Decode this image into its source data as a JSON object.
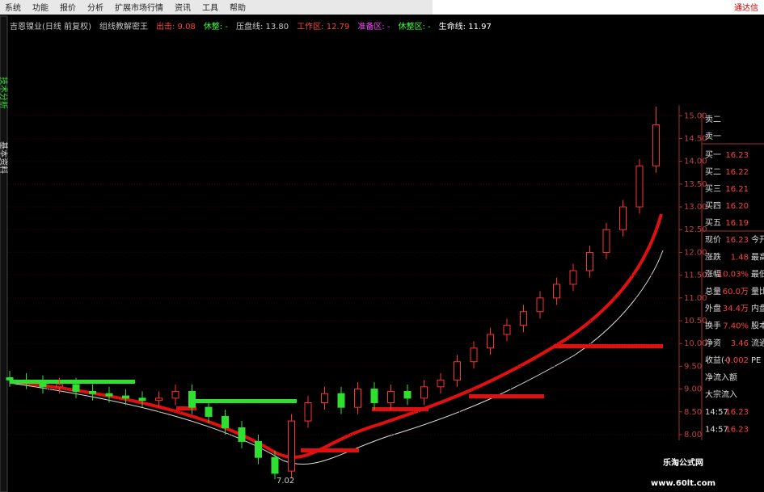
{
  "menu": [
    "系统",
    "功能",
    "报价",
    "分析",
    "扩展市场行情",
    "资讯",
    "工具",
    "帮助"
  ],
  "brand": "通达信",
  "side_tabs": [
    "技术分析",
    "基本资料"
  ],
  "indicator_bar": [
    {
      "text": "吉恩镍业(日线 前复权)",
      "color": "#c8c8c8"
    },
    {
      "text": "组线教解密王",
      "color": "#c8c8c8"
    },
    {
      "text": "出击: 9.08",
      "color": "#ff4040"
    },
    {
      "text": "休整: -",
      "color": "#40ff40"
    },
    {
      "text": "压盘线: 13.80",
      "color": "#c8c8c8"
    },
    {
      "text": "工作区: 12.79",
      "color": "#ff4040"
    },
    {
      "text": "准备区: -",
      "color": "#ff40ff"
    },
    {
      "text": "休整区: -",
      "color": "#40ff40"
    },
    {
      "text": "生命线: 11.97",
      "color": "#ffffff"
    }
  ],
  "chart_data": {
    "type": "candlestick",
    "ylim": [
      6.9,
      15.2
    ],
    "yticks": [
      {
        "value": 8,
        "label": "8.00"
      },
      {
        "value": 8.5,
        "label": "8.50"
      },
      {
        "value": 9,
        "label": "9.00"
      },
      {
        "value": 9.5,
        "label": "9.50"
      },
      {
        "value": 10,
        "label": "10.00"
      },
      {
        "value": 10.5,
        "label": "10.50"
      },
      {
        "value": 11,
        "label": "11.00"
      },
      {
        "value": 11.5,
        "label": "11.50"
      },
      {
        "value": 12,
        "label": "12.00"
      },
      {
        "value": 12.5,
        "label": "12.50"
      },
      {
        "value": 13,
        "label": "13.00"
      },
      {
        "value": 13.5,
        "label": "13.50"
      },
      {
        "value": 14,
        "label": "14.00"
      },
      {
        "value": 14.5,
        "label": "14.50"
      },
      {
        "value": 15,
        "label": "15.00"
      }
    ],
    "grid": true,
    "up_color": "#ff3030",
    "down_color": "#30e030",
    "open": [
      9.25,
      9.2,
      9.15,
      9.05,
      9.1,
      8.95,
      8.9,
      8.85,
      8.8,
      8.75,
      8.8,
      8.95,
      8.6,
      8.4,
      8.15,
      7.85,
      7.5,
      7.2,
      8.3,
      8.7,
      8.9,
      8.6,
      9.0,
      8.7,
      8.95,
      8.8,
      9.05,
      9.2,
      9.6,
      9.9,
      10.2,
      10.4,
      10.7,
      11.0,
      11.3,
      11.6,
      12.0,
      12.5,
      13.0,
      13.9
    ],
    "close": [
      9.2,
      9.15,
      9.05,
      9.1,
      8.95,
      8.9,
      8.85,
      8.8,
      8.75,
      8.8,
      8.95,
      8.6,
      8.4,
      8.15,
      7.85,
      7.5,
      7.15,
      8.3,
      8.7,
      8.9,
      8.6,
      9.0,
      8.7,
      8.95,
      8.8,
      9.05,
      9.2,
      9.6,
      9.9,
      10.2,
      10.4,
      10.7,
      11.0,
      11.3,
      11.6,
      12.0,
      12.5,
      13.0,
      13.9,
      14.8
    ],
    "high": [
      9.4,
      9.35,
      9.3,
      9.25,
      9.25,
      9.1,
      9.05,
      9.0,
      8.95,
      8.95,
      9.1,
      9.1,
      8.75,
      8.55,
      8.3,
      8.0,
      7.65,
      8.45,
      8.85,
      9.05,
      9.05,
      9.15,
      9.15,
      9.1,
      9.1,
      9.2,
      9.35,
      9.75,
      10.05,
      10.35,
      10.55,
      10.85,
      11.15,
      11.45,
      11.75,
      12.15,
      12.65,
      13.15,
      14.05,
      15.2
    ],
    "low": [
      9.05,
      9.0,
      8.9,
      8.9,
      8.8,
      8.75,
      8.7,
      8.65,
      8.6,
      8.6,
      8.65,
      8.45,
      8.25,
      8.0,
      7.7,
      7.35,
      7.02,
      7.05,
      8.15,
      8.55,
      8.45,
      8.45,
      8.55,
      8.55,
      8.65,
      8.65,
      8.9,
      9.05,
      9.45,
      9.75,
      10.05,
      10.25,
      10.55,
      10.85,
      11.15,
      11.45,
      11.85,
      12.35,
      12.85,
      13.75
    ],
    "low_label": "7.02"
  },
  "order_book": [
    {
      "label": "卖二",
      "price": null
    },
    {
      "label": "卖一",
      "price": null
    },
    {
      "label": "买一",
      "price": "16.23"
    },
    {
      "label": "买二",
      "price": "16.22"
    },
    {
      "label": "买三",
      "price": "16.21"
    },
    {
      "label": "买四",
      "price": "16.20"
    },
    {
      "label": "买五",
      "price": "16.19"
    }
  ],
  "quote": [
    {
      "label": "现价",
      "value": "16.23",
      "label2": "今开"
    },
    {
      "label": "涨跌",
      "value": "1.48",
      "label2": "最高"
    },
    {
      "label": "涨幅",
      "value": "10.03%",
      "label2": "最低"
    },
    {
      "label": "总量",
      "value": "60.0万",
      "label2": "量比"
    },
    {
      "label": "外盘",
      "value": "34.4万",
      "label2": "内盘"
    },
    {
      "label": "换手",
      "value": "7.40%",
      "label2": "股本"
    },
    {
      "label": "净资",
      "value": "3.46",
      "label2": "流通"
    },
    {
      "label": "收益(-)",
      "value": "0.002",
      "label2": "PE"
    },
    {
      "label": "净流入额",
      "value": null,
      "label2": null
    },
    {
      "label": "大宗流入",
      "value": null,
      "label2": null
    },
    {
      "label": "14:57",
      "value": "16.23",
      "label2": null
    },
    {
      "label": "14:57",
      "value": "16.23",
      "label2": null
    }
  ],
  "watermark": {
    "title": "乐淘公式网",
    "url": "www.60lt.com"
  }
}
